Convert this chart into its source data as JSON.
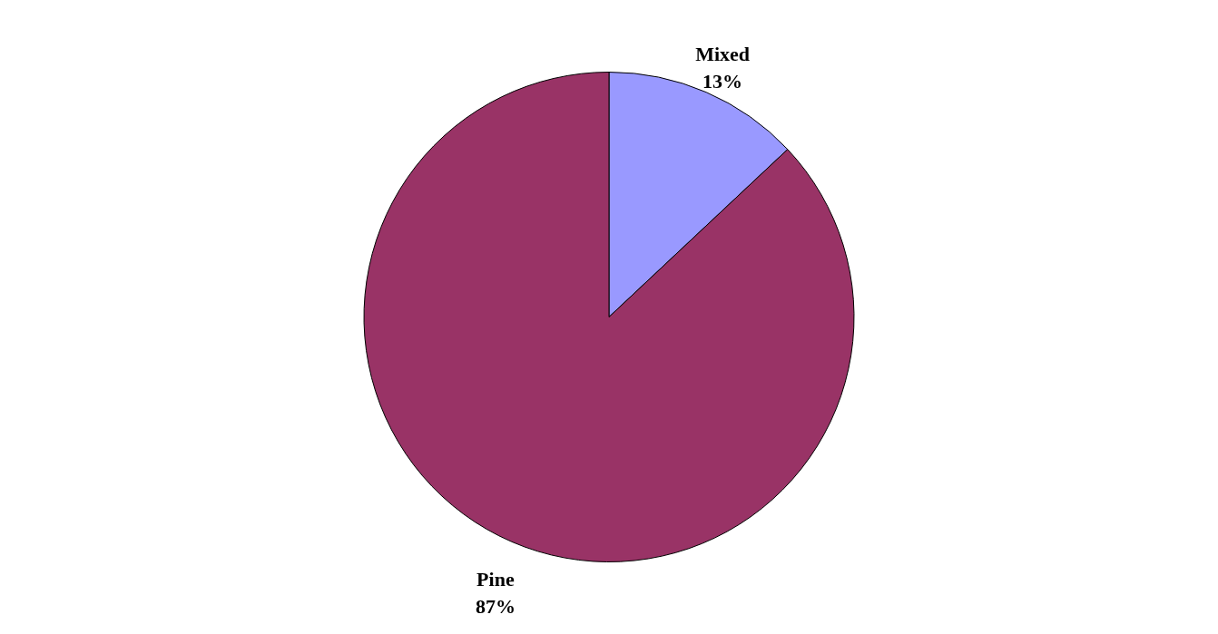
{
  "chart_data": {
    "type": "pie",
    "categories": [
      "Mixed",
      "Pine"
    ],
    "values": [
      13,
      87
    ],
    "colors": [
      "#9999ff",
      "#993366"
    ],
    "value_labels": [
      "13%",
      "87%"
    ],
    "legend": false
  }
}
